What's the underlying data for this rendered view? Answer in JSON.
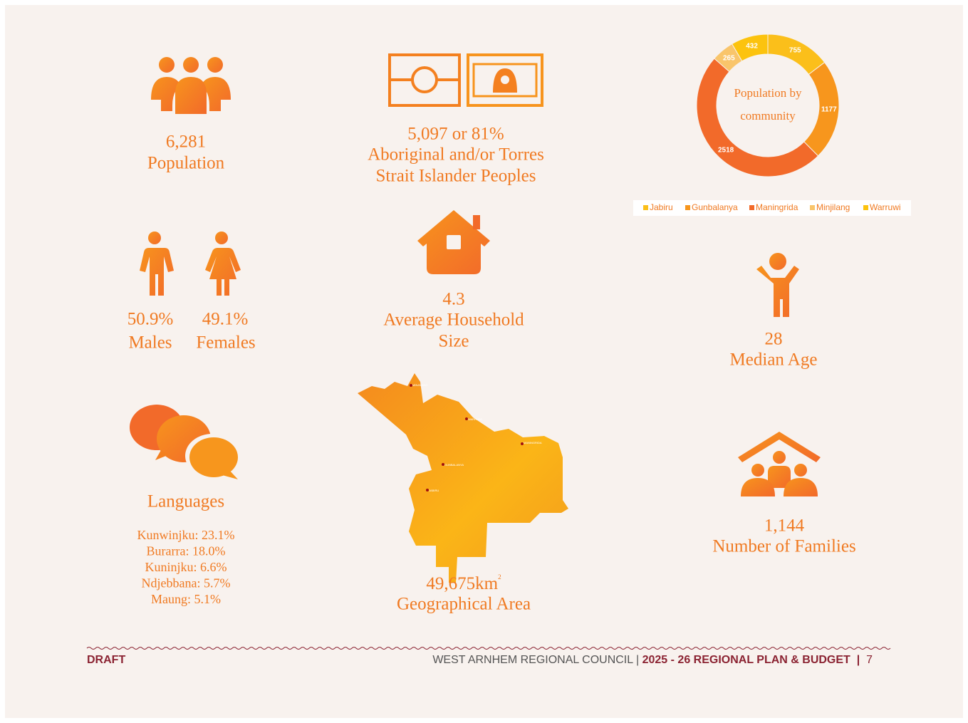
{
  "stats": {
    "population": {
      "value": "6,281",
      "label": "Population"
    },
    "indigenous": {
      "value": "5,097 or 81%",
      "label": [
        "Aboriginal and/or Torres",
        "Strait Islander Peoples"
      ]
    },
    "household": {
      "value": "4.3",
      "label": [
        "Average Household",
        "Size"
      ]
    },
    "males": {
      "value": "50.9%",
      "label": "Males"
    },
    "females": {
      "value": "49.1%",
      "label": "Females"
    },
    "median_age": {
      "value": "28",
      "label": "Median Age"
    },
    "languages": {
      "label": "Languages",
      "items": [
        "Kunwinjku: 23.1%",
        "Burarra: 18.0%",
        "Kuninjku: 6.6%",
        "Ndjebbana: 5.7%",
        "Maung: 5.1%"
      ]
    },
    "area": {
      "value": "49,675km",
      "sup": "2",
      "label": "Geographical Area"
    },
    "families": {
      "value": "1,144",
      "label": "Number of Families"
    }
  },
  "map": {
    "labels": [
      "MINJILANG",
      "WARRUWI",
      "MANINGRIDA",
      "GUNBALANYA",
      "JABIRU"
    ]
  },
  "chart_data": {
    "type": "donut",
    "title": [
      "Population by",
      "community"
    ],
    "categories": [
      "Jabiru",
      "Gunbalanya",
      "Maningrida",
      "Minjilang",
      "Warruwi"
    ],
    "values": [
      755,
      1177,
      2518,
      265,
      432
    ],
    "colors": [
      "#fbbf1a",
      "#f7961d",
      "#f26a2a",
      "#f9c56b",
      "#fcc30e"
    ],
    "legend": "bottom"
  },
  "footer": {
    "left": "DRAFT",
    "org": "WEST ARNHEM REGIONAL COUNCIL | ",
    "plan": "2025 - 26 REGIONAL PLAN & BUDGET",
    "sep": "  |  ",
    "page": "7"
  }
}
